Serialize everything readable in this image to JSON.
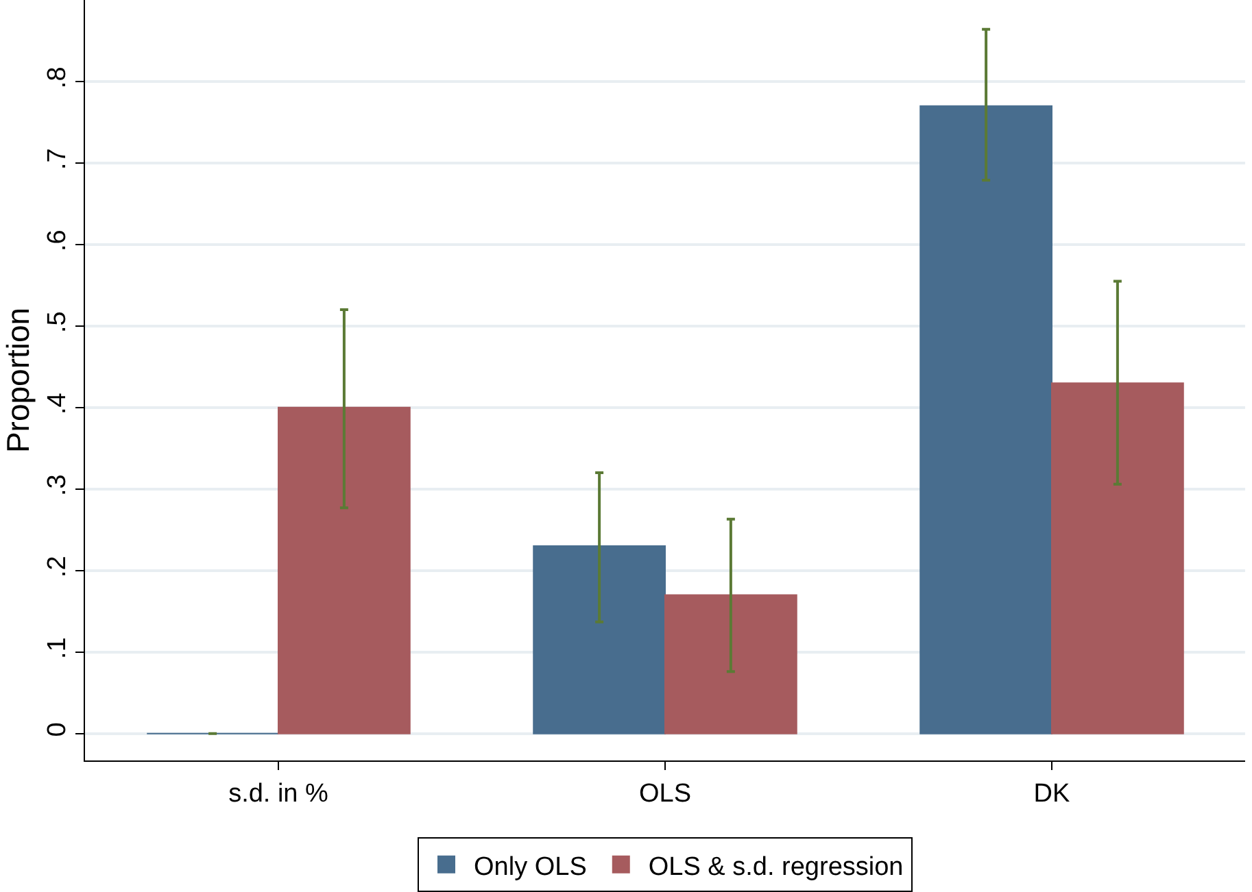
{
  "chart_data": {
    "type": "bar",
    "ylabel": "Proportion",
    "categories": [
      "s.d. in %",
      "OLS",
      "DK"
    ],
    "series": [
      {
        "name": "Only OLS",
        "color": "#486d8e",
        "values": [
          0,
          0.23,
          0.77
        ],
        "errors": [
          [
            0,
            0
          ],
          [
            0.137,
            0.32
          ],
          [
            0.679,
            0.864
          ]
        ]
      },
      {
        "name": "OLS & s.d. regression",
        "color": "#a65b5e",
        "values": [
          0.4,
          0.17,
          0.43
        ],
        "errors": [
          [
            0.277,
            0.52
          ],
          [
            0.076,
            0.263
          ],
          [
            0.306,
            0.555
          ]
        ]
      }
    ],
    "ylim": [
      -0.033,
      0.9
    ],
    "yticks": [
      {
        "value": 0,
        "label": "0"
      },
      {
        "value": 0.1,
        "label": ".1"
      },
      {
        "value": 0.2,
        "label": ".2"
      },
      {
        "value": 0.3,
        "label": ".3"
      },
      {
        "value": 0.4,
        "label": ".4"
      },
      {
        "value": 0.5,
        "label": ".5"
      },
      {
        "value": 0.6,
        "label": ".6"
      },
      {
        "value": 0.7,
        "label": ".7"
      },
      {
        "value": 0.8,
        "label": ".8"
      }
    ],
    "grid": "y",
    "legend": "bottom"
  }
}
